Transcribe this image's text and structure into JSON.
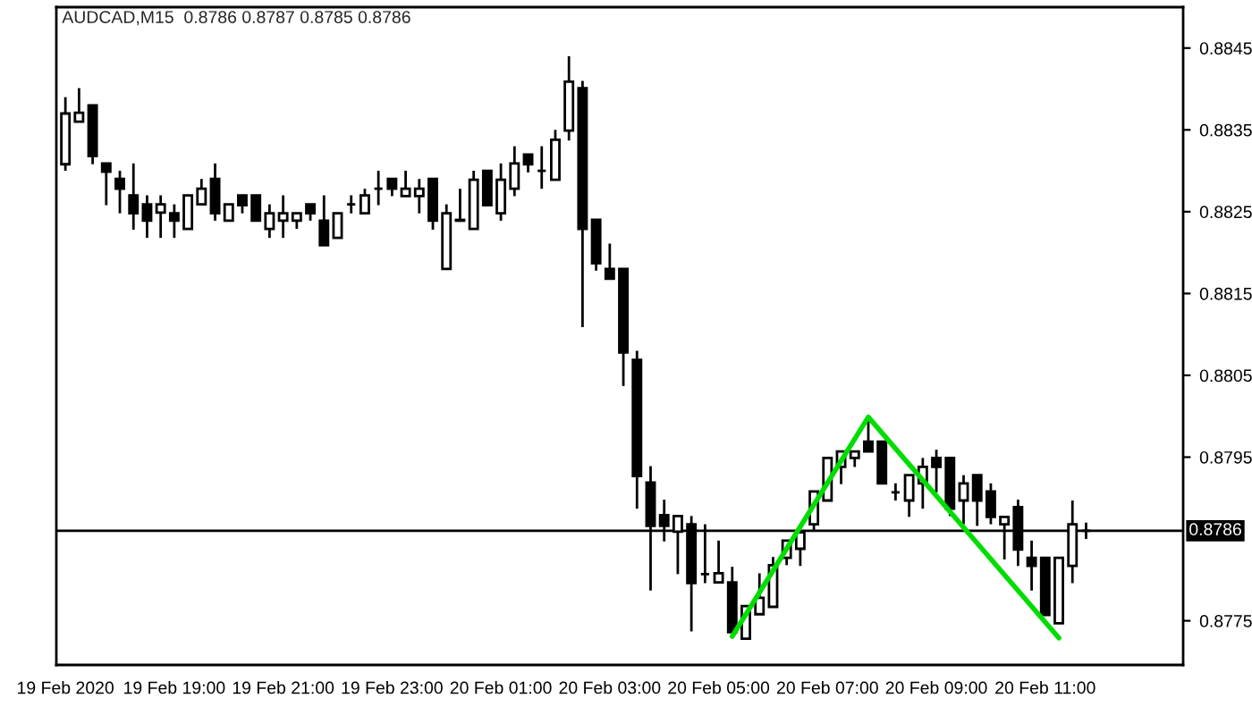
{
  "chart_data": {
    "type": "candlestick",
    "title": "AUDCAD,M15  0.8786 0.8787 0.8785 0.8786",
    "x": [
      "2020-02-19T17:00",
      "2020-02-19T17:15",
      "2020-02-19T17:30",
      "2020-02-19T17:45",
      "2020-02-19T18:00",
      "2020-02-19T18:15",
      "2020-02-19T18:30",
      "2020-02-19T18:45",
      "2020-02-19T19:00",
      "2020-02-19T19:15",
      "2020-02-19T19:30",
      "2020-02-19T19:45",
      "2020-02-19T20:00",
      "2020-02-19T20:15",
      "2020-02-19T20:30",
      "2020-02-19T20:45",
      "2020-02-19T21:00",
      "2020-02-19T21:15",
      "2020-02-19T21:30",
      "2020-02-19T21:45",
      "2020-02-19T22:00",
      "2020-02-19T22:15",
      "2020-02-19T22:30",
      "2020-02-19T22:45",
      "2020-02-19T23:00",
      "2020-02-19T23:15",
      "2020-02-19T23:30",
      "2020-02-19T23:45",
      "2020-02-20T00:00",
      "2020-02-20T00:15",
      "2020-02-20T00:30",
      "2020-02-20T00:45",
      "2020-02-20T01:00",
      "2020-02-20T01:15",
      "2020-02-20T01:30",
      "2020-02-20T01:45",
      "2020-02-20T02:00",
      "2020-02-20T02:15",
      "2020-02-20T02:30",
      "2020-02-20T02:45",
      "2020-02-20T03:00",
      "2020-02-20T03:15",
      "2020-02-20T03:30",
      "2020-02-20T03:45",
      "2020-02-20T04:00",
      "2020-02-20T04:15",
      "2020-02-20T04:30",
      "2020-02-20T04:45",
      "2020-02-20T05:00",
      "2020-02-20T05:15",
      "2020-02-20T05:30",
      "2020-02-20T05:45",
      "2020-02-20T06:00",
      "2020-02-20T06:15",
      "2020-02-20T06:30",
      "2020-02-20T06:45",
      "2020-02-20T07:00",
      "2020-02-20T07:15",
      "2020-02-20T07:30",
      "2020-02-20T07:45",
      "2020-02-20T08:00",
      "2020-02-20T08:15",
      "2020-02-20T08:30",
      "2020-02-20T08:45",
      "2020-02-20T09:00",
      "2020-02-20T09:15",
      "2020-02-20T09:30",
      "2020-02-20T09:45",
      "2020-02-20T10:00",
      "2020-02-20T10:15",
      "2020-02-20T10:30",
      "2020-02-20T10:45",
      "2020-02-20T11:00",
      "2020-02-20T11:15",
      "2020-02-20T11:30",
      "2020-02-20T11:45"
    ],
    "ohlc": [
      [
        0.88308,
        0.8839,
        0.883,
        0.8837
      ],
      [
        0.8836,
        0.88401,
        0.8836,
        0.88371
      ],
      [
        0.8838,
        0.8838,
        0.88308,
        0.88318
      ],
      [
        0.88309,
        0.88309,
        0.88258,
        0.88299
      ],
      [
        0.8829,
        0.883,
        0.88248,
        0.88278
      ],
      [
        0.8827,
        0.88309,
        0.88228,
        0.88248
      ],
      [
        0.88259,
        0.8827,
        0.88218,
        0.88239
      ],
      [
        0.88249,
        0.8827,
        0.88218,
        0.88259
      ],
      [
        0.88248,
        0.88259,
        0.88218,
        0.88239
      ],
      [
        0.88229,
        0.8827,
        0.88229,
        0.8827
      ],
      [
        0.88259,
        0.8829,
        0.88259,
        0.88278
      ],
      [
        0.8829,
        0.88309,
        0.88239,
        0.88248
      ],
      [
        0.88239,
        0.88259,
        0.88239,
        0.88259
      ],
      [
        0.8827,
        0.8827,
        0.88248,
        0.88258
      ],
      [
        0.8827,
        0.8827,
        0.88239,
        0.88239
      ],
      [
        0.88229,
        0.88259,
        0.88218,
        0.88248
      ],
      [
        0.88239,
        0.8827,
        0.88218,
        0.88248
      ],
      [
        0.88239,
        0.88248,
        0.88229,
        0.88248
      ],
      [
        0.88259,
        0.88259,
        0.88239,
        0.88248
      ],
      [
        0.88239,
        0.8827,
        0.88209,
        0.88209
      ],
      [
        0.88218,
        0.88248,
        0.88218,
        0.88248
      ],
      [
        0.88259,
        0.8827,
        0.88248,
        0.88259
      ],
      [
        0.88248,
        0.88278,
        0.88248,
        0.8827
      ],
      [
        0.88278,
        0.883,
        0.88258,
        0.88278
      ],
      [
        0.8829,
        0.8829,
        0.88269,
        0.88278
      ],
      [
        0.88269,
        0.883,
        0.88269,
        0.88278
      ],
      [
        0.88269,
        0.8829,
        0.88248,
        0.88278
      ],
      [
        0.8829,
        0.8829,
        0.88228,
        0.88239
      ],
      [
        0.8818,
        0.88259,
        0.8818,
        0.88248
      ],
      [
        0.8824,
        0.88278,
        0.88239,
        0.88239
      ],
      [
        0.88229,
        0.883,
        0.88229,
        0.88289
      ],
      [
        0.883,
        0.883,
        0.88258,
        0.88258
      ],
      [
        0.88248,
        0.88309,
        0.88239,
        0.88289
      ],
      [
        0.88278,
        0.8833,
        0.88269,
        0.88309
      ],
      [
        0.8832,
        0.8832,
        0.88298,
        0.88308
      ],
      [
        0.883,
        0.8833,
        0.88278,
        0.883
      ],
      [
        0.88289,
        0.8835,
        0.88289,
        0.88338
      ],
      [
        0.88349,
        0.8844,
        0.88337,
        0.88409
      ],
      [
        0.88401,
        0.8841,
        0.88109,
        0.88229
      ],
      [
        0.8824,
        0.8824,
        0.88178,
        0.88187
      ],
      [
        0.8818,
        0.88211,
        0.88168,
        0.88168
      ],
      [
        0.8818,
        0.8818,
        0.88037,
        0.88078
      ],
      [
        0.88069,
        0.8808,
        0.87887,
        0.87927
      ],
      [
        0.87919,
        0.87939,
        0.87787,
        0.87866
      ],
      [
        0.87879,
        0.87898,
        0.87847,
        0.87866
      ],
      [
        0.87859,
        0.87878,
        0.87807,
        0.87878
      ],
      [
        0.87868,
        0.87878,
        0.87737,
        0.87796
      ],
      [
        0.87807,
        0.87868,
        0.87796,
        0.87807
      ],
      [
        0.87797,
        0.87848,
        0.87797,
        0.87808
      ],
      [
        0.87797,
        0.87816,
        0.87736,
        0.87736
      ],
      [
        0.87728,
        0.87768,
        0.87728,
        0.87768
      ],
      [
        0.87758,
        0.87808,
        0.87758,
        0.87778
      ],
      [
        0.87767,
        0.87828,
        0.87767,
        0.87818
      ],
      [
        0.87827,
        0.87848,
        0.87818,
        0.87848
      ],
      [
        0.87838,
        0.87858,
        0.87817,
        0.87858
      ],
      [
        0.87868,
        0.87908,
        0.87859,
        0.87908
      ],
      [
        0.87897,
        0.87949,
        0.87897,
        0.87949
      ],
      [
        0.87938,
        0.87957,
        0.87917,
        0.87957
      ],
      [
        0.87949,
        0.87957,
        0.87938,
        0.87957
      ],
      [
        0.87969,
        0.87998,
        0.87957,
        0.87957
      ],
      [
        0.87969,
        0.87969,
        0.87918,
        0.87918
      ],
      [
        0.87907,
        0.87918,
        0.87897,
        0.87907
      ],
      [
        0.87897,
        0.87928,
        0.87877,
        0.87928
      ],
      [
        0.87918,
        0.87949,
        0.87887,
        0.87938
      ],
      [
        0.87949,
        0.87959,
        0.87907,
        0.87938
      ],
      [
        0.87949,
        0.87949,
        0.87878,
        0.87887
      ],
      [
        0.87897,
        0.87928,
        0.87868,
        0.87918
      ],
      [
        0.87928,
        0.87928,
        0.87866,
        0.87897
      ],
      [
        0.87908,
        0.87918,
        0.87868,
        0.87877
      ],
      [
        0.87868,
        0.87877,
        0.87825,
        0.87877
      ],
      [
        0.87889,
        0.87898,
        0.87817,
        0.87837
      ],
      [
        0.87827,
        0.87848,
        0.87787,
        0.87817
      ],
      [
        0.87827,
        0.87827,
        0.87757,
        0.87757
      ],
      [
        0.87747,
        0.87827,
        0.87747,
        0.87827
      ],
      [
        0.87817,
        0.87897,
        0.87796,
        0.87868
      ],
      [
        0.8786,
        0.8787,
        0.8785,
        0.8786
      ]
    ],
    "series": [
      {
        "type": "line",
        "color": "#00dd00",
        "x": [
          "2020-02-20T05:15",
          "2020-02-20T07:45",
          "2020-02-20T11:15"
        ],
        "values": [
          0.87731,
          0.87999,
          0.87729
        ]
      }
    ],
    "ref_lines": [
      {
        "axis": "y",
        "value": 0.8786,
        "label": "0.8786",
        "color": "#000000"
      }
    ],
    "xlim": [
      "2020-02-19T16:50",
      "2020-02-20T13:32"
    ],
    "xticks": [
      {
        "value": "2020-02-19T17:00",
        "label": "19 Feb 2020"
      },
      {
        "value": "2020-02-19T19:00",
        "label": "19 Feb 19:00"
      },
      {
        "value": "2020-02-19T21:00",
        "label": "19 Feb 21:00"
      },
      {
        "value": "2020-02-19T23:00",
        "label": "19 Feb 23:00"
      },
      {
        "value": "2020-02-20T01:00",
        "label": "20 Feb 01:00"
      },
      {
        "value": "2020-02-20T03:00",
        "label": "20 Feb 03:00"
      },
      {
        "value": "2020-02-20T05:00",
        "label": "20 Feb 05:00"
      },
      {
        "value": "2020-02-20T07:00",
        "label": "20 Feb 07:00"
      },
      {
        "value": "2020-02-20T09:00",
        "label": "20 Feb 09:00"
      },
      {
        "value": "2020-02-20T11:00",
        "label": "20 Feb 11:00"
      }
    ],
    "ylim": [
      0.87696,
      0.885
    ],
    "yticks": [
      0.8775,
      0.8795,
      0.8805,
      0.8815,
      0.8825,
      0.8835,
      0.8845
    ],
    "legend": false
  }
}
